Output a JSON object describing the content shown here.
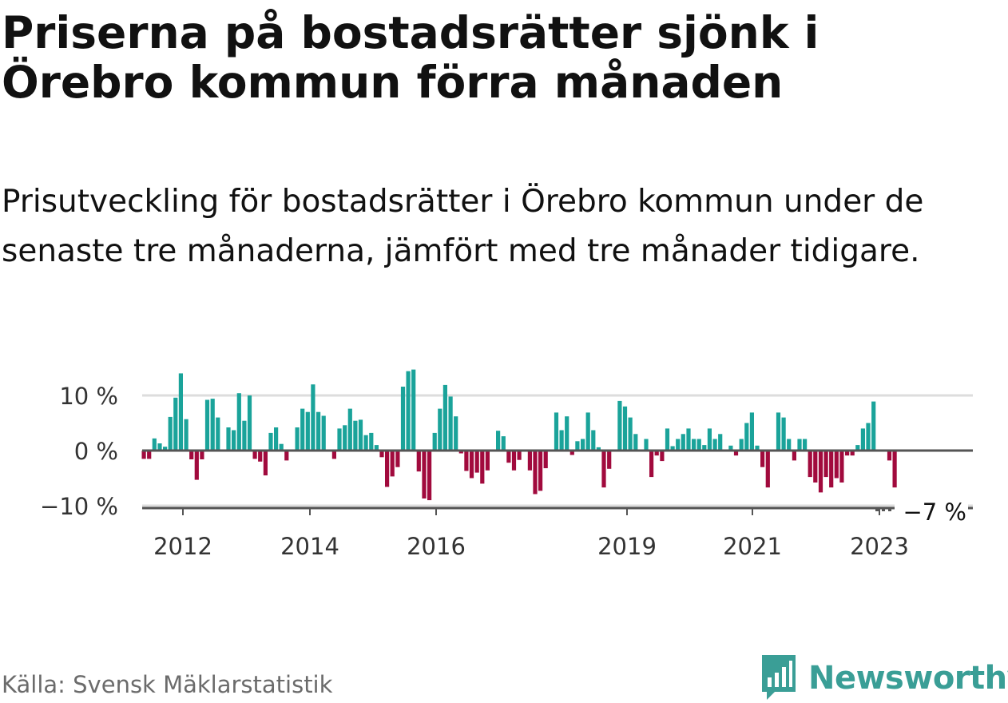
{
  "title": "Priserna på bostadsrätter sjönk i Örebro kommun förra månaden",
  "subtitle": "Prisutveckling för bostadsrätter i Örebro kommun under de senaste tre månaderna, jämfört med tre månader tidigare.",
  "source": "Källa: Svensk Mäklarstatistik",
  "brand": "Newsworthy",
  "colors": {
    "positive": "#1aa39a",
    "negative": "#a10a3d",
    "grid": "#dddddd",
    "baseline": "#555555",
    "text": "#333333",
    "brand": "#3a9e96"
  },
  "chart_data": {
    "type": "bar",
    "ylim": [
      -10.8,
      15.2
    ],
    "y_ticks": [
      {
        "value": 10,
        "label": "10 %"
      },
      {
        "value": 0,
        "label": "0 %"
      },
      {
        "value": -10,
        "label": "−10 %"
      }
    ],
    "x_ticks": [
      "2012",
      "2014",
      "2016",
      "2019",
      "2021",
      "2023"
    ],
    "last_value_label": "−7 %",
    "grid": true,
    "values": [
      -1.5,
      -1.5,
      2.2,
      1.3,
      0.7,
      6.1,
      9.6,
      14.0,
      5.7,
      -1.6,
      -5.3,
      -1.6,
      9.2,
      9.4,
      6.0,
      0.0,
      4.2,
      3.7,
      10.4,
      5.4,
      10.0,
      -1.5,
      -2.0,
      -4.5,
      3.2,
      4.2,
      1.2,
      -1.8,
      0.0,
      4.2,
      7.6,
      7.0,
      12.0,
      7.0,
      6.3,
      0.0,
      -1.5,
      4.0,
      4.6,
      7.6,
      5.4,
      5.6,
      2.8,
      3.2,
      1.0,
      -1.2,
      -6.6,
      -4.7,
      -3.0,
      11.6,
      14.4,
      14.7,
      -3.8,
      -8.7,
      -9.0,
      3.2,
      7.6,
      11.9,
      9.8,
      6.2,
      -0.5,
      -3.7,
      -5.0,
      -4.0,
      -6.0,
      -3.6,
      0.0,
      3.6,
      2.6,
      -2.2,
      -3.6,
      -1.7,
      0.0,
      -3.6,
      -7.9,
      -7.3,
      -3.2,
      0.0,
      6.9,
      3.7,
      6.2,
      -0.8,
      1.7,
      2.1,
      6.9,
      3.7,
      0.6,
      -6.7,
      -3.3,
      0.0,
      9.0,
      8.0,
      6.0,
      3.0,
      0.2,
      2.1,
      -4.8,
      -0.9,
      -1.9,
      4.0,
      0.8,
      2.1,
      3.0,
      4.0,
      2.1,
      2.1,
      1.0,
      4.0,
      2.1,
      3.0,
      0.0,
      0.9,
      -0.9,
      2.1,
      5.0,
      6.9,
      0.9,
      -3.0,
      -6.7,
      0.0,
      6.9,
      6.0,
      2.1,
      -1.8,
      2.1,
      2.1,
      -4.8,
      -5.8,
      -7.6,
      -4.8,
      -6.7,
      -5.0,
      -5.8,
      -0.9,
      -0.9,
      1.0,
      4.0,
      5.0,
      8.9,
      0.0,
      0.0,
      -1.8,
      -6.7
    ]
  }
}
